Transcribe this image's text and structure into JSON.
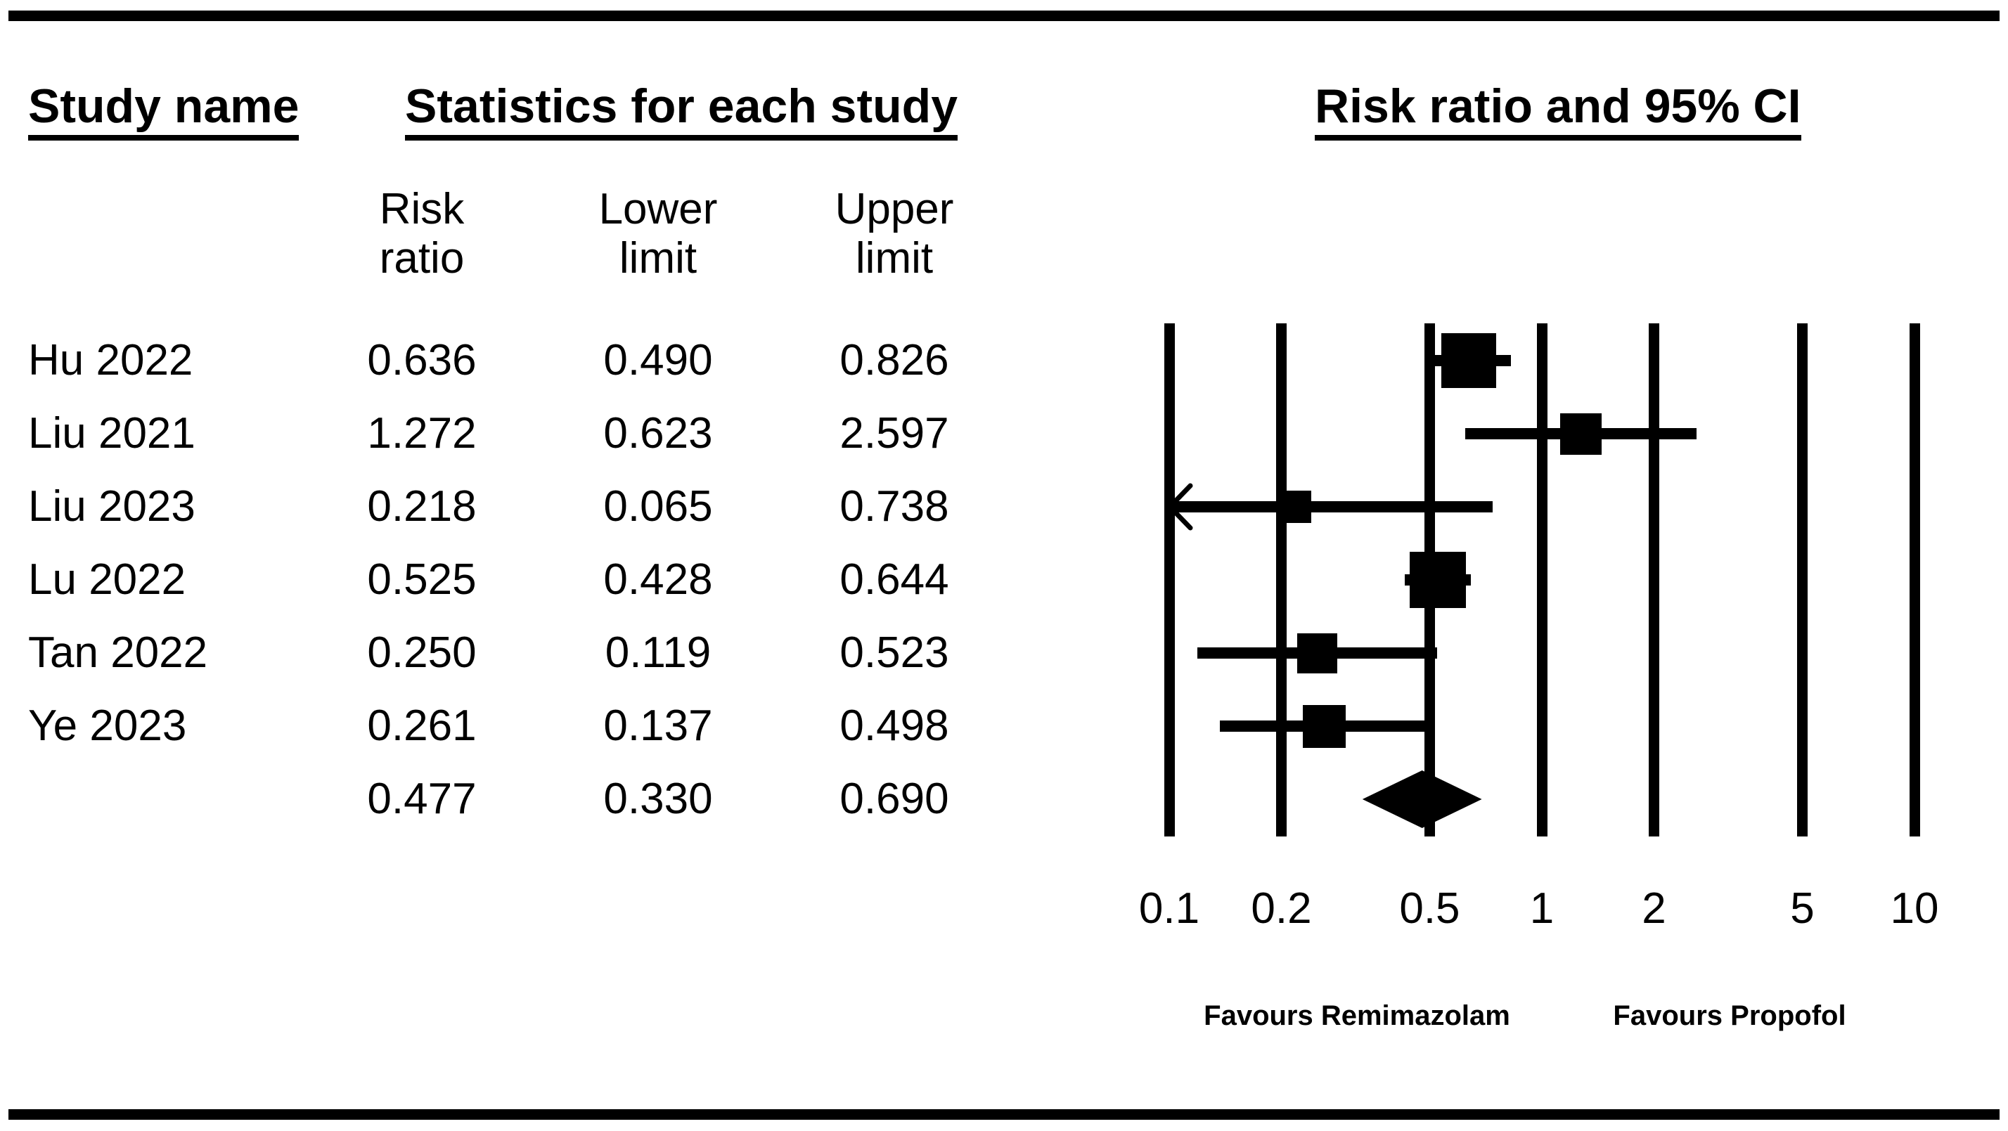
{
  "table": {
    "header_study": "Study name",
    "header_stats": "Statistics for each study",
    "columns": [
      {
        "line1": "Risk",
        "line2": "ratio"
      },
      {
        "line1": "Lower",
        "line2": "limit"
      },
      {
        "line1": "Upper",
        "line2": "limit"
      }
    ],
    "rows": [
      {
        "study": "Hu 2022",
        "rr": "0.636",
        "lower": "0.490",
        "upper": "0.826"
      },
      {
        "study": "Liu 2021",
        "rr": "1.272",
        "lower": "0.623",
        "upper": "2.597"
      },
      {
        "study": "Liu 2023",
        "rr": "0.218",
        "lower": "0.065",
        "upper": "0.738"
      },
      {
        "study": "Lu 2022",
        "rr": "0.525",
        "lower": "0.428",
        "upper": "0.644"
      },
      {
        "study": "Tan 2022",
        "rr": "0.250",
        "lower": "0.119",
        "upper": "0.523"
      },
      {
        "study": "Ye 2023",
        "rr": "0.261",
        "lower": "0.137",
        "upper": "0.498"
      },
      {
        "study": "",
        "rr": "0.477",
        "lower": "0.330",
        "upper": "0.690"
      }
    ]
  },
  "chart_data": {
    "type": "forest",
    "title": "Risk ratio and 95% CI",
    "x_scale": "log10",
    "xlim": [
      0.1,
      10
    ],
    "ticks": [
      0.1,
      0.2,
      0.5,
      1,
      2,
      5,
      10
    ],
    "tick_labels": [
      "0.1",
      "0.2",
      "0.5",
      "1",
      "2",
      "5",
      "10"
    ],
    "grid": true,
    "studies": [
      {
        "label": "Hu 2022",
        "rr": 0.636,
        "lower": 0.49,
        "upper": 0.826,
        "marker_size_px": 78
      },
      {
        "label": "Liu 2021",
        "rr": 1.272,
        "lower": 0.623,
        "upper": 2.597,
        "marker_size_px": 59
      },
      {
        "label": "Liu 2023",
        "rr": 0.218,
        "lower": 0.065,
        "upper": 0.738,
        "marker_size_px": 46
      },
      {
        "label": "Lu 2022",
        "rr": 0.525,
        "lower": 0.428,
        "upper": 0.644,
        "marker_size_px": 80
      },
      {
        "label": "Tan 2022",
        "rr": 0.25,
        "lower": 0.119,
        "upper": 0.523,
        "marker_size_px": 57
      },
      {
        "label": "Ye 2023",
        "rr": 0.261,
        "lower": 0.137,
        "upper": 0.498,
        "marker_size_px": 61
      }
    ],
    "summary": {
      "rr": 0.477,
      "lower": 0.33,
      "upper": 0.69
    },
    "favours_left": "Favours Remimazolam",
    "favours_right": "Favours Propofol"
  },
  "colors": {
    "foreground": "#000000",
    "background": "#ffffff"
  }
}
